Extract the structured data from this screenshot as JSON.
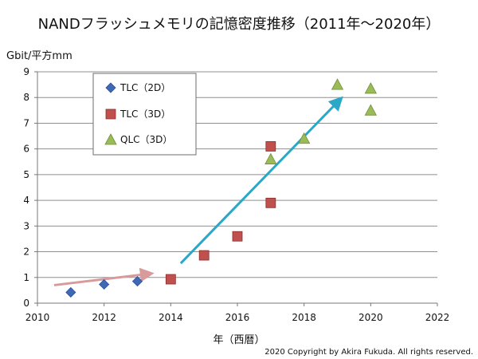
{
  "chart_data": {
    "type": "scatter",
    "title": "NANDフラッシュメモリの記憶密度推移（2011年～2020年）",
    "xlabel": "年（西暦）",
    "ylabel": "Gbit/平方mm",
    "xlim": [
      2010,
      2022
    ],
    "ylim": [
      0,
      9
    ],
    "x_ticks": [
      2010,
      2012,
      2014,
      2016,
      2018,
      2020,
      2022
    ],
    "y_ticks": [
      0,
      1,
      2,
      3,
      4,
      5,
      6,
      7,
      8,
      9
    ],
    "grid": "horizontal",
    "legend_position": "top-left",
    "series": [
      {
        "name": "TLC（2D）",
        "marker": "diamond",
        "color": "#3f68b5",
        "points": [
          {
            "x": 2011,
            "y": 0.42
          },
          {
            "x": 2012,
            "y": 0.73
          },
          {
            "x": 2013,
            "y": 0.85
          }
        ]
      },
      {
        "name": "TLC（3D）",
        "marker": "square",
        "color": "#c0504d",
        "points": [
          {
            "x": 2014,
            "y": 0.93
          },
          {
            "x": 2015,
            "y": 1.86
          },
          {
            "x": 2016,
            "y": 2.6
          },
          {
            "x": 2017,
            "y": 3.9
          },
          {
            "x": 2017,
            "y": 6.1
          }
        ]
      },
      {
        "name": "QLC（3D）",
        "marker": "triangle",
        "color": "#9bbb59",
        "points": [
          {
            "x": 2017,
            "y": 5.6
          },
          {
            "x": 2018,
            "y": 6.4
          },
          {
            "x": 2019,
            "y": 8.5
          },
          {
            "x": 2020,
            "y": 8.35
          },
          {
            "x": 2020,
            "y": 7.5
          }
        ]
      }
    ],
    "trend_arrows": [
      {
        "color": "#d89a9a",
        "from": {
          "x": 2010.5,
          "y": 0.7
        },
        "to": {
          "x": 2013.4,
          "y": 1.15
        }
      },
      {
        "color": "#2aa8c8",
        "from": {
          "x": 2014.3,
          "y": 1.55
        },
        "to": {
          "x": 2019.1,
          "y": 7.95
        }
      }
    ],
    "footer": "2020 Copyright by Akira Fukuda. All rights reserved."
  }
}
